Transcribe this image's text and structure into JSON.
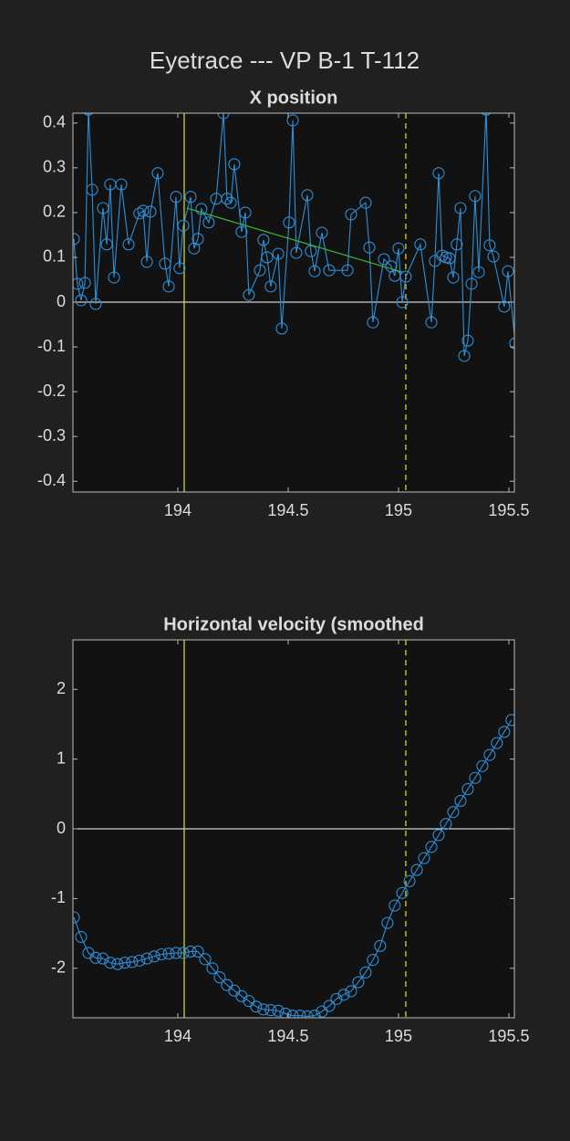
{
  "title": "Eyetrace --- VP B-1 T-112",
  "chart_data": [
    {
      "type": "line",
      "title": "X position",
      "xlim": [
        193.525,
        195.525
      ],
      "xticks": [
        194,
        194.5,
        195,
        195.5
      ],
      "ylim": [
        -0.424,
        0.422
      ],
      "yticks": [
        -0.4,
        -0.3,
        -0.2,
        -0.1,
        0,
        0.1,
        0.2,
        0.3,
        0.4
      ],
      "grid": false,
      "hlines": [
        {
          "value": 0,
          "color": "#ffffff",
          "style": "solid"
        }
      ],
      "vlines": [
        {
          "value": 194.029,
          "color": "#d4d22e",
          "style": "solid"
        },
        {
          "value": 195.033,
          "color": "#d4d22e",
          "style": "dashed"
        }
      ],
      "series": [
        {
          "color": "#2f8fd8",
          "marker": "o",
          "x": [
            193.529,
            193.545,
            193.562,
            193.579,
            193.595,
            193.612,
            193.628,
            193.661,
            193.678,
            193.694,
            193.711,
            193.744,
            193.777,
            193.826,
            193.843,
            193.86,
            193.876,
            193.909,
            193.942,
            193.959,
            193.992,
            194.008,
            194.025,
            194.058,
            194.074,
            194.091,
            194.107,
            194.14,
            194.174,
            194.207,
            194.223,
            194.24,
            194.256,
            194.289,
            194.306,
            194.322,
            194.372,
            194.388,
            194.405,
            194.421,
            194.455,
            194.471,
            194.504,
            194.521,
            194.537,
            194.587,
            194.603,
            194.62,
            194.653,
            194.686,
            194.769,
            194.785,
            194.851,
            194.868,
            194.884,
            194.934,
            194.967,
            194.983,
            195.0,
            195.017,
            195.033,
            195.099,
            195.149,
            195.165,
            195.182,
            195.198,
            195.215,
            195.231,
            195.248,
            195.264,
            195.281,
            195.298,
            195.314,
            195.331,
            195.347,
            195.364,
            195.397,
            195.413,
            195.43,
            195.479,
            195.496,
            195.529
          ],
          "values": [
            0.141,
            0.041,
            0.004,
            0.043,
            0.43,
            0.251,
            -0.004,
            0.21,
            0.129,
            0.263,
            0.055,
            0.263,
            0.129,
            0.198,
            0.204,
            0.09,
            0.202,
            0.288,
            0.086,
            0.035,
            0.235,
            0.076,
            0.171,
            0.235,
            0.12,
            0.141,
            0.208,
            0.178,
            0.231,
            0.422,
            0.231,
            0.222,
            0.308,
            0.157,
            0.2,
            0.016,
            0.071,
            0.139,
            0.1,
            0.035,
            0.108,
            -0.059,
            0.178,
            0.406,
            0.11,
            0.239,
            0.114,
            0.069,
            0.155,
            0.071,
            0.071,
            0.196,
            0.222,
            0.122,
            -0.045,
            0.096,
            0.08,
            0.059,
            0.12,
            0.0,
            0.057,
            0.129,
            -0.045,
            0.092,
            0.288,
            0.104,
            0.1,
            0.098,
            0.055,
            0.129,
            0.21,
            -0.12,
            -0.086,
            0.041,
            0.237,
            0.067,
            0.43,
            0.127,
            0.102,
            -0.01,
            0.069,
            -0.092
          ]
        },
        {
          "color": "#3fc63f",
          "marker": "none",
          "x": [
            194.041,
            195.017
          ],
          "values": [
            0.21,
            0.067
          ]
        }
      ]
    },
    {
      "type": "line",
      "title": "Horizontal velocity (smoothed",
      "xlim": [
        193.525,
        195.525
      ],
      "xticks": [
        194,
        194.5,
        195,
        195.5
      ],
      "ylim": [
        -2.71,
        2.71
      ],
      "yticks": [
        -2,
        -1,
        0,
        1,
        2
      ],
      "grid": false,
      "hlines": [
        {
          "value": 0,
          "color": "#ffffff",
          "style": "solid"
        }
      ],
      "vlines": [
        {
          "value": 194.029,
          "color": "#d4d22e",
          "style": "solid"
        },
        {
          "value": 195.033,
          "color": "#d4d22e",
          "style": "dashed"
        }
      ],
      "series": [
        {
          "color": "#2f8fd8",
          "marker": "o",
          "x": [
            193.529,
            193.562,
            193.595,
            193.628,
            193.661,
            193.694,
            193.727,
            193.76,
            193.793,
            193.826,
            193.86,
            193.893,
            193.926,
            193.959,
            193.992,
            194.025,
            194.058,
            194.091,
            194.124,
            194.157,
            194.19,
            194.223,
            194.256,
            194.289,
            194.322,
            194.355,
            194.388,
            194.421,
            194.455,
            194.488,
            194.521,
            194.554,
            194.587,
            194.62,
            194.653,
            194.686,
            194.719,
            194.752,
            194.785,
            194.818,
            194.851,
            194.884,
            194.917,
            194.95,
            194.983,
            195.017,
            195.05,
            195.083,
            195.116,
            195.149,
            195.182,
            195.215,
            195.248,
            195.281,
            195.314,
            195.347,
            195.38,
            195.413,
            195.446,
            195.479,
            195.512
          ],
          "values": [
            -1.27,
            -1.55,
            -1.78,
            -1.85,
            -1.86,
            -1.92,
            -1.94,
            -1.92,
            -1.91,
            -1.89,
            -1.86,
            -1.83,
            -1.8,
            -1.79,
            -1.78,
            -1.78,
            -1.76,
            -1.76,
            -1.87,
            -2.0,
            -2.13,
            -2.24,
            -2.32,
            -2.4,
            -2.47,
            -2.55,
            -2.59,
            -2.6,
            -2.61,
            -2.65,
            -2.68,
            -2.68,
            -2.69,
            -2.68,
            -2.62,
            -2.54,
            -2.44,
            -2.38,
            -2.33,
            -2.2,
            -2.06,
            -1.88,
            -1.68,
            -1.35,
            -1.1,
            -0.92,
            -0.75,
            -0.59,
            -0.42,
            -0.26,
            -0.09,
            0.07,
            0.24,
            0.4,
            0.57,
            0.73,
            0.9,
            1.06,
            1.23,
            1.39,
            1.56
          ]
        }
      ]
    }
  ]
}
